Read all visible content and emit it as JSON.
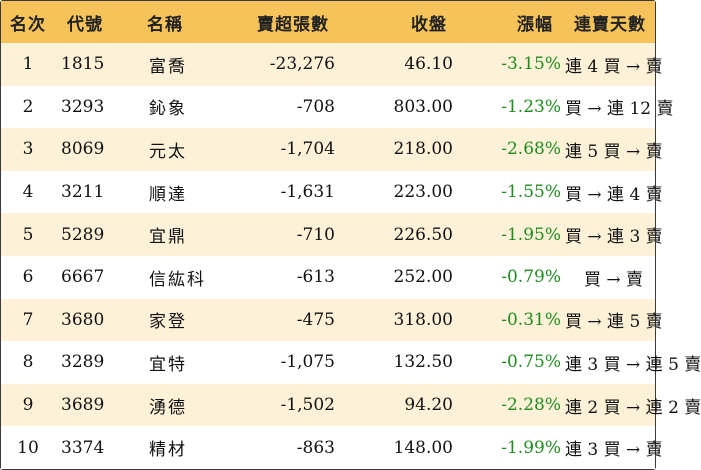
{
  "headers": {
    "rank": "名次",
    "code": "代號",
    "name": "名稱",
    "oversell": "賣超張數",
    "close": "收盤",
    "change": "漲幅",
    "streak": "連賣天數"
  },
  "rows": [
    {
      "rank": "1",
      "code": "1815",
      "name": "富喬",
      "oversell": "-23,276",
      "close": "46.10",
      "change": "-3.15%",
      "streak": "連 4 買 → 賣"
    },
    {
      "rank": "2",
      "code": "3293",
      "name": "鈊象",
      "oversell": "-708",
      "close": "803.00",
      "change": "-1.23%",
      "streak": "買 → 連 12 賣"
    },
    {
      "rank": "3",
      "code": "8069",
      "name": "元太",
      "oversell": "-1,704",
      "close": "218.00",
      "change": "-2.68%",
      "streak": "連 5 買 → 賣"
    },
    {
      "rank": "4",
      "code": "3211",
      "name": "順達",
      "oversell": "-1,631",
      "close": "223.00",
      "change": "-1.55%",
      "streak": "買 → 連 4 賣"
    },
    {
      "rank": "5",
      "code": "5289",
      "name": "宜鼎",
      "oversell": "-710",
      "close": "226.50",
      "change": "-1.95%",
      "streak": "買 → 連 3 賣"
    },
    {
      "rank": "6",
      "code": "6667",
      "name": "信紘科",
      "oversell": "-613",
      "close": "252.00",
      "change": "-0.79%",
      "streak": "買 → 賣"
    },
    {
      "rank": "7",
      "code": "3680",
      "name": "家登",
      "oversell": "-475",
      "close": "318.00",
      "change": "-0.31%",
      "streak": "買 → 連 5 賣"
    },
    {
      "rank": "8",
      "code": "3289",
      "name": "宜特",
      "oversell": "-1,075",
      "close": "132.50",
      "change": "-0.75%",
      "streak": "連 3 買 → 連 5 賣"
    },
    {
      "rank": "9",
      "code": "3689",
      "name": "湧德",
      "oversell": "-1,502",
      "close": "94.20",
      "change": "-2.28%",
      "streak": "連 2 買 → 連 2 賣"
    },
    {
      "rank": "10",
      "code": "3374",
      "name": "精材",
      "oversell": "-863",
      "close": "148.00",
      "change": "-1.99%",
      "streak": "連 3 買 → 賣"
    }
  ],
  "colors": {
    "header_bg": "#f6c35a",
    "stripe_bg": "#fdf1d8",
    "change_negative": "#1e8c1e"
  }
}
